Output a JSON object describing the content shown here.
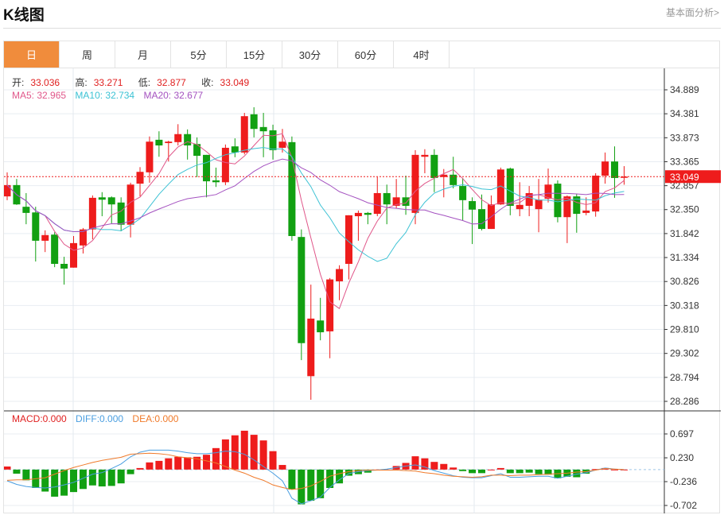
{
  "header": {
    "title": "K线图",
    "link": "基本面分析>"
  },
  "tabs": [
    {
      "label": "日",
      "active": true
    },
    {
      "label": "周"
    },
    {
      "label": "月"
    },
    {
      "label": "5分"
    },
    {
      "label": "15分"
    },
    {
      "label": "30分"
    },
    {
      "label": "60分"
    },
    {
      "label": "4时"
    }
  ],
  "info": {
    "open_label": "开:",
    "open": "33.036",
    "high_label": "高:",
    "high": "33.271",
    "low_label": "低:",
    "low": "32.877",
    "close_label": "收:",
    "close": "33.049",
    "ma5_label": "MA5: 32.965",
    "ma10_label": "MA10: 32.734",
    "ma20_label": "MA20: 32.677"
  },
  "macd_info": {
    "macd": "MACD:0.000",
    "diff": "DIFF:0.000",
    "dea": "DEA:0.000"
  },
  "colors": {
    "up": "#ee1c1c",
    "down": "#12a012",
    "ma5": "#e0578a",
    "ma10": "#3cc2d4",
    "ma20": "#a452c0",
    "diff": "#4a9ee0",
    "dea": "#f07a2a",
    "accent": "#f08c3c"
  },
  "chart_data": [
    {
      "type": "candlestick",
      "y_ticks": [
        "34.889",
        "34.381",
        "33.873",
        "33.365",
        "32.857",
        "32.350",
        "31.842",
        "31.334",
        "30.826",
        "30.318",
        "29.810",
        "29.302",
        "28.794",
        "28.286"
      ],
      "ylim": [
        28.286,
        34.889
      ],
      "last_price": "33.049",
      "grid": true,
      "ohlc": [
        [
          32.63,
          33.14,
          32.55,
          32.87
        ],
        [
          32.87,
          33.0,
          32.45,
          32.46
        ],
        [
          32.41,
          32.7,
          32.04,
          32.28
        ],
        [
          32.29,
          32.41,
          31.25,
          31.69
        ],
        [
          31.69,
          31.91,
          31.45,
          31.81
        ],
        [
          31.82,
          31.87,
          31.13,
          31.2
        ],
        [
          31.2,
          31.35,
          30.76,
          31.1
        ],
        [
          31.12,
          31.79,
          31.12,
          31.64
        ],
        [
          31.59,
          31.96,
          31.42,
          31.93
        ],
        [
          31.93,
          32.65,
          31.72,
          32.6
        ],
        [
          32.61,
          32.72,
          32.21,
          32.56
        ],
        [
          32.61,
          32.63,
          32.06,
          32.46
        ],
        [
          32.5,
          32.61,
          31.89,
          32.03
        ],
        [
          32.03,
          32.92,
          31.76,
          32.88
        ],
        [
          32.9,
          33.25,
          32.63,
          33.15
        ],
        [
          33.14,
          33.9,
          32.92,
          33.79
        ],
        [
          33.83,
          34.01,
          33.47,
          33.71
        ],
        [
          33.76,
          33.81,
          33.37,
          33.79
        ],
        [
          33.78,
          34.16,
          33.71,
          33.95
        ],
        [
          33.95,
          34.05,
          33.41,
          33.71
        ],
        [
          33.74,
          33.88,
          33.04,
          33.49
        ],
        [
          33.51,
          33.51,
          32.61,
          32.95
        ],
        [
          32.97,
          33.24,
          32.83,
          32.93
        ],
        [
          32.93,
          33.73,
          32.87,
          33.66
        ],
        [
          33.69,
          33.86,
          33.46,
          33.56
        ],
        [
          33.56,
          34.4,
          33.52,
          34.33
        ],
        [
          34.37,
          34.52,
          33.88,
          34.06
        ],
        [
          34.1,
          34.4,
          33.46,
          34.01
        ],
        [
          34.03,
          34.15,
          33.41,
          33.61
        ],
        [
          33.66,
          34.06,
          33.56,
          33.79
        ],
        [
          33.78,
          33.9,
          31.69,
          31.79
        ],
        [
          31.77,
          31.93,
          29.16,
          29.52
        ],
        [
          28.82,
          30.76,
          28.32,
          30.04
        ],
        [
          30.0,
          30.48,
          29.58,
          29.75
        ],
        [
          29.77,
          30.9,
          29.2,
          30.87
        ],
        [
          30.83,
          31.17,
          30.43,
          31.09
        ],
        [
          31.2,
          32.23,
          30.87,
          32.23
        ],
        [
          32.21,
          32.33,
          31.69,
          32.28
        ],
        [
          32.28,
          32.3,
          32.04,
          32.24
        ],
        [
          32.26,
          33.04,
          32.21,
          32.7
        ],
        [
          32.7,
          32.88,
          32.04,
          32.46
        ],
        [
          32.43,
          33.0,
          32.38,
          32.61
        ],
        [
          32.61,
          33.07,
          32.24,
          32.43
        ],
        [
          32.28,
          33.61,
          32.04,
          33.51
        ],
        [
          33.47,
          33.63,
          33.12,
          33.51
        ],
        [
          33.51,
          33.63,
          32.72,
          33.02
        ],
        [
          33.04,
          33.21,
          32.61,
          33.09
        ],
        [
          33.09,
          33.47,
          32.8,
          32.87
        ],
        [
          32.85,
          33.02,
          32.12,
          32.55
        ],
        [
          32.53,
          32.61,
          31.62,
          32.35
        ],
        [
          32.36,
          32.67,
          31.91,
          31.94
        ],
        [
          31.94,
          32.65,
          31.94,
          32.46
        ],
        [
          32.46,
          33.24,
          32.45,
          33.2
        ],
        [
          33.22,
          33.24,
          32.23,
          32.43
        ],
        [
          32.36,
          32.93,
          32.21,
          32.45
        ],
        [
          32.43,
          32.85,
          32.21,
          32.7
        ],
        [
          32.36,
          33.0,
          31.87,
          32.56
        ],
        [
          32.58,
          33.22,
          32.5,
          32.88
        ],
        [
          32.9,
          32.97,
          32.08,
          32.19
        ],
        [
          32.19,
          32.65,
          31.64,
          32.63
        ],
        [
          32.63,
          32.68,
          31.86,
          32.26
        ],
        [
          32.28,
          32.61,
          32.23,
          32.33
        ],
        [
          32.31,
          33.12,
          32.2,
          33.07
        ],
        [
          33.07,
          33.56,
          32.9,
          33.37
        ],
        [
          33.37,
          33.69,
          32.6,
          33.02
        ],
        [
          33.036,
          33.271,
          32.877,
          33.049
        ]
      ],
      "ma_periods": [
        5,
        10,
        20
      ]
    },
    {
      "type": "macd",
      "y_ticks": [
        "0.697",
        "0.230",
        "-0.236",
        "-0.702"
      ],
      "ylim": [
        -0.702,
        0.697
      ],
      "histogram": [
        0.06,
        -0.08,
        -0.21,
        -0.36,
        -0.43,
        -0.53,
        -0.51,
        -0.44,
        -0.38,
        -0.31,
        -0.33,
        -0.32,
        -0.27,
        -0.09,
        0.03,
        0.14,
        0.17,
        0.22,
        0.25,
        0.24,
        0.25,
        0.29,
        0.42,
        0.59,
        0.67,
        0.76,
        0.68,
        0.57,
        0.36,
        0.09,
        -0.39,
        -0.68,
        -0.61,
        -0.56,
        -0.36,
        -0.27,
        -0.12,
        -0.09,
        -0.06,
        0.0,
        0.0,
        0.07,
        0.13,
        0.26,
        0.22,
        0.15,
        0.11,
        0.04,
        -0.03,
        -0.07,
        -0.07,
        0.0,
        0.03,
        -0.07,
        -0.07,
        -0.06,
        -0.09,
        -0.1,
        -0.17,
        -0.14,
        -0.15,
        -0.08,
        0.01,
        0.03,
        0.0,
        0.0
      ],
      "diff": [
        -0.22,
        -0.29,
        -0.33,
        -0.35,
        -0.36,
        -0.34,
        -0.3,
        -0.25,
        -0.17,
        -0.09,
        -0.06,
        0.02,
        0.11,
        0.25,
        0.34,
        0.38,
        0.38,
        0.38,
        0.36,
        0.33,
        0.31,
        0.31,
        0.33,
        0.36,
        0.35,
        0.3,
        0.19,
        0.06,
        -0.07,
        -0.22,
        -0.56,
        -0.67,
        -0.61,
        -0.54,
        -0.35,
        -0.2,
        -0.08,
        -0.04,
        -0.02,
        -0.01,
        0.01,
        0.04,
        0.07,
        0.09,
        0.05,
        -0.02,
        -0.07,
        -0.12,
        -0.15,
        -0.16,
        -0.16,
        -0.12,
        -0.08,
        -0.15,
        -0.15,
        -0.14,
        -0.13,
        -0.13,
        -0.17,
        -0.13,
        -0.09,
        -0.06,
        -0.01,
        0.03,
        0.01,
        0.0
      ],
      "dea": [
        -0.21,
        -0.2,
        -0.2,
        -0.18,
        -0.16,
        -0.09,
        -0.02,
        0.04,
        0.09,
        0.14,
        0.18,
        0.21,
        0.24,
        0.3,
        0.31,
        0.32,
        0.31,
        0.29,
        0.25,
        0.23,
        0.21,
        0.17,
        0.13,
        0.06,
        -0.01,
        -0.07,
        -0.15,
        -0.21,
        -0.3,
        -0.35,
        -0.39,
        -0.37,
        -0.32,
        -0.23,
        -0.13,
        -0.08,
        -0.04,
        -0.02,
        -0.01,
        -0.01,
        -0.01,
        -0.01,
        -0.02,
        -0.03,
        -0.06,
        -0.08,
        -0.11,
        -0.13,
        -0.14,
        -0.15,
        -0.14,
        -0.11,
        -0.11,
        -0.12,
        -0.11,
        -0.11,
        -0.1,
        -0.09,
        -0.08,
        -0.07,
        -0.05,
        -0.04,
        -0.01,
        0.02,
        0.01,
        0.0
      ]
    }
  ]
}
